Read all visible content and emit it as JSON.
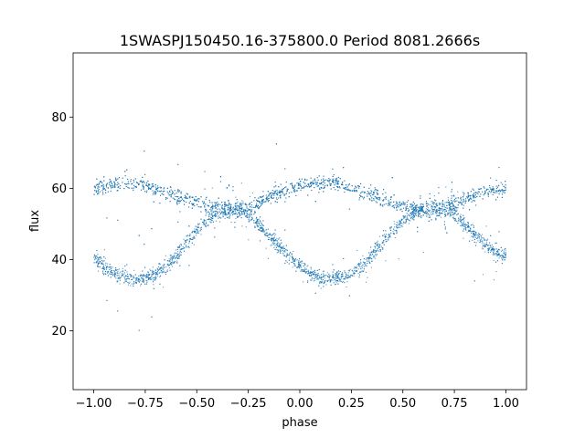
{
  "chart_data": {
    "type": "scatter",
    "title": "1SWASPJ150450.16-375800.0 Period 8081.2666s",
    "xlabel": "phase",
    "ylabel": "flux",
    "xlim": [
      -1.1,
      1.1
    ],
    "ylim": [
      3.5,
      98.0
    ],
    "x_ticks": [
      -1.0,
      -0.75,
      -0.5,
      -0.25,
      0.0,
      0.25,
      0.5,
      0.75,
      1.0
    ],
    "x_tick_labels": [
      "−1.00",
      "−0.75",
      "−0.50",
      "−0.25",
      "0.00",
      "0.25",
      "0.50",
      "0.75",
      "1.00"
    ],
    "y_ticks": [
      20,
      40,
      60,
      80
    ],
    "y_tick_labels": [
      "20",
      "40",
      "60",
      "80"
    ],
    "grid": false,
    "legend": "none",
    "marker_color": "#1f77b4",
    "series": [
      {
        "x": [
          -1.0,
          -0.95,
          -0.9,
          -0.85,
          -0.8,
          -0.75,
          -0.7,
          -0.65,
          -0.6,
          -0.55,
          -0.5,
          -0.45,
          -0.4,
          -0.35,
          -0.3,
          -0.25,
          -0.2,
          -0.15,
          -0.1,
          -0.05,
          0.0,
          0.05,
          0.1,
          0.15,
          0.2,
          0.25,
          0.3,
          0.35,
          0.4,
          0.45,
          0.5,
          0.55,
          0.6,
          0.65,
          0.7,
          0.75,
          0.8,
          0.85,
          0.9,
          0.95,
          1.0
        ],
        "y": [
          41,
          38,
          36,
          35,
          34.5,
          35,
          36,
          38,
          41,
          45,
          48,
          51,
          53,
          54,
          55,
          53,
          50,
          47,
          44,
          41,
          38,
          36,
          35,
          34.5,
          35,
          36,
          38,
          41,
          45,
          48,
          51,
          53,
          54,
          55,
          55,
          53,
          50,
          47,
          44,
          42,
          41
        ]
      },
      {
        "x": [
          -1.0,
          -0.95,
          -0.9,
          -0.85,
          -0.8,
          -0.75,
          -0.7,
          -0.65,
          -0.6,
          -0.55,
          -0.5,
          -0.45,
          -0.4,
          -0.35,
          -0.3,
          -0.25,
          -0.2,
          -0.15,
          -0.1,
          -0.05,
          0.0,
          0.05,
          0.1,
          0.15,
          0.2,
          0.25,
          0.3,
          0.35,
          0.4,
          0.45,
          0.5,
          0.55,
          0.6,
          0.65,
          0.7,
          0.75,
          0.8,
          0.85,
          0.9,
          0.95,
          1.0
        ],
        "y": [
          60,
          60.5,
          61,
          61.5,
          61.5,
          61,
          60,
          59,
          58,
          57,
          56,
          55,
          55,
          54,
          53,
          54,
          56,
          58,
          59,
          60,
          60.5,
          61,
          61.5,
          61.5,
          61,
          60,
          59,
          58,
          57,
          56,
          55,
          55,
          54,
          53,
          54,
          56,
          57,
          58,
          59,
          59.5,
          60
        ]
      }
    ]
  }
}
